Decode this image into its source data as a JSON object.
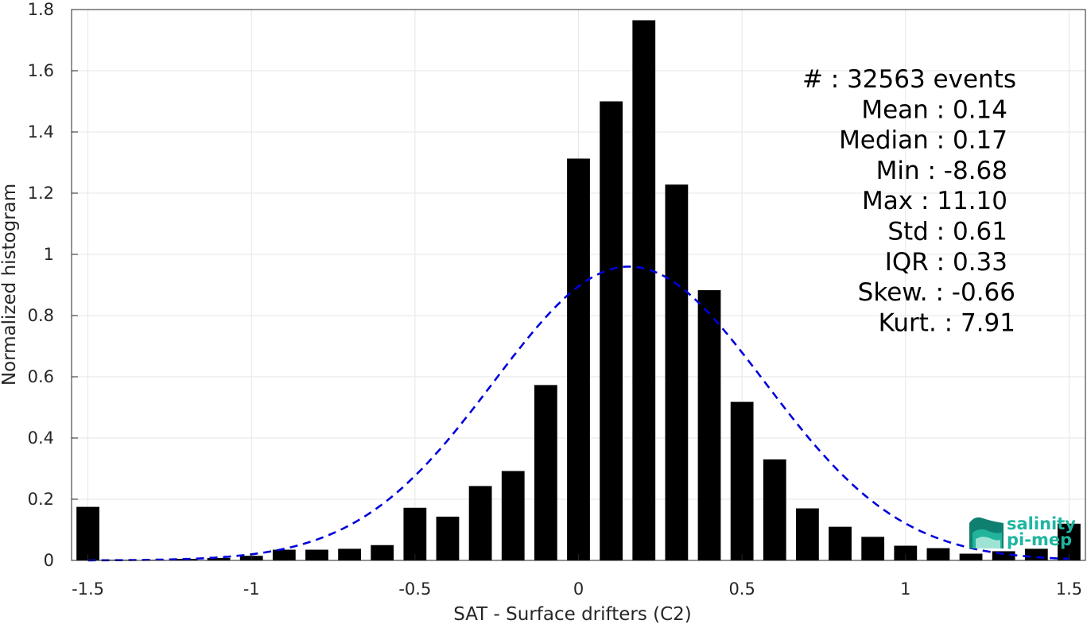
{
  "chart_data": {
    "type": "bar",
    "xlabel": "SAT - Surface drifters (C2)",
    "ylabel": "Normalized histogram",
    "xlim": [
      -1.55,
      1.55
    ],
    "ylim": [
      0,
      1.8
    ],
    "xticks": [
      -1.5,
      -1,
      -0.5,
      0,
      0.5,
      1,
      1.5
    ],
    "xtick_labels": [
      "-1.5",
      "-1",
      "-0.5",
      "0",
      "0.5",
      "1",
      "1.5"
    ],
    "yticks": [
      0,
      0.2,
      0.4,
      0.6,
      0.8,
      1,
      1.2,
      1.4,
      1.6,
      1.8
    ],
    "ytick_labels": [
      "0",
      "0.2",
      "0.4",
      "0.6",
      "0.8",
      "1",
      "1.2",
      "1.4",
      "1.6",
      "1.8"
    ],
    "grid": true,
    "bar_color": "#000000",
    "bar_width": 0.07,
    "bars": {
      "x": [
        -1.5,
        -1.4,
        -1.3,
        -1.2,
        -1.1,
        -1.0,
        -0.9,
        -0.8,
        -0.7,
        -0.6,
        -0.5,
        -0.4,
        -0.3,
        -0.2,
        -0.1,
        0.0,
        0.1,
        0.2,
        0.3,
        0.4,
        0.5,
        0.6,
        0.7,
        0.8,
        0.9,
        1.0,
        1.1,
        1.2,
        1.3,
        1.4,
        1.5
      ],
      "y": [
        0.175,
        0.002,
        0.002,
        0.005,
        0.008,
        0.015,
        0.035,
        0.035,
        0.038,
        0.05,
        0.172,
        0.143,
        0.243,
        0.292,
        0.573,
        1.313,
        1.5,
        1.765,
        1.228,
        0.883,
        0.518,
        0.33,
        0.17,
        0.11,
        0.077,
        0.048,
        0.04,
        0.022,
        0.03,
        0.038,
        0.12
      ]
    },
    "fit": {
      "type": "gaussian",
      "mean": 0.155,
      "std": 0.415,
      "peak": 0.96,
      "color": "#0000dd",
      "style": "dashed"
    },
    "stats": [
      "#  : 32563 events",
      "Mean : 0.14",
      "Median : 0.17",
      "Min : -8.68",
      "Max : 11.10",
      "Std : 0.61",
      "IQR : 0.33",
      "Skew. : -0.66",
      "Kurt. : 7.91"
    ],
    "legend_placement": "top-right"
  },
  "logo": {
    "line1": "salinity",
    "line2": "pi-mep"
  }
}
